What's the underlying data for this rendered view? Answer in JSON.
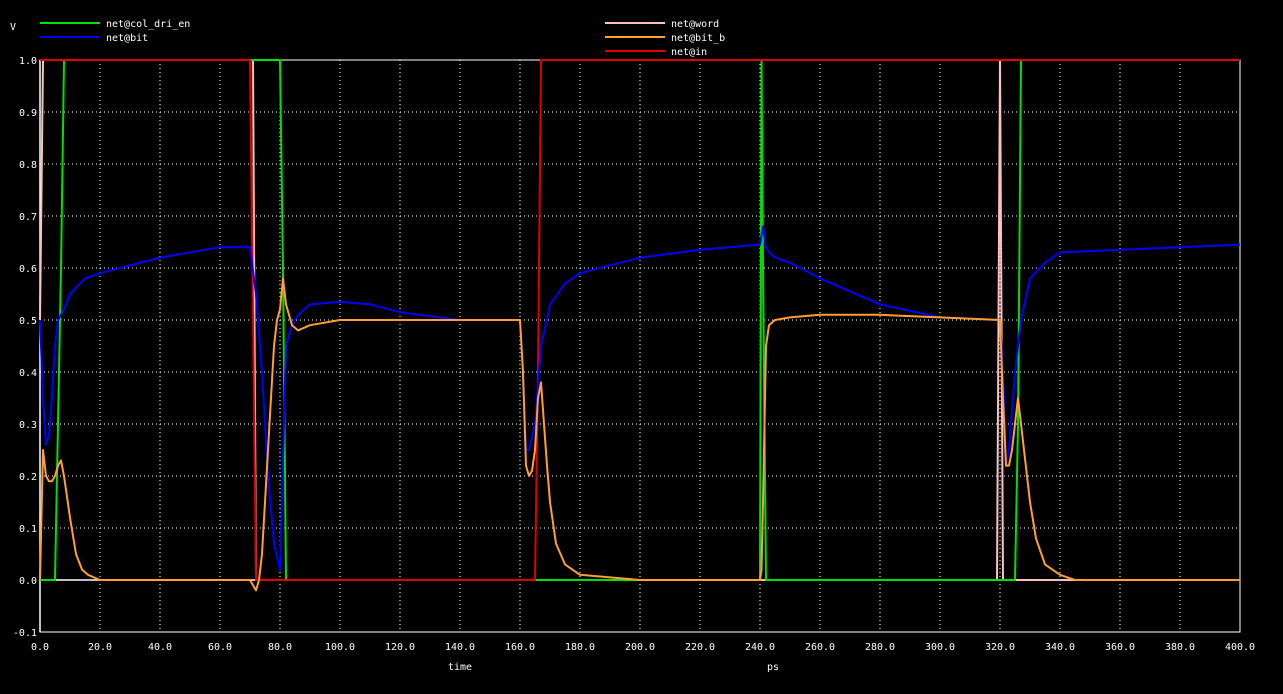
{
  "chart_data": {
    "type": "line",
    "y_unit_label": "V",
    "xlabel": "time",
    "x_unit_label": "ps",
    "xlim": [
      0,
      400
    ],
    "ylim": [
      -0.1,
      1.0
    ],
    "grid": true,
    "x_ticks": [
      "0.0",
      "20.0",
      "40.0",
      "60.0",
      "80.0",
      "100.0",
      "120.0",
      "140.0",
      "160.0",
      "180.0",
      "200.0",
      "220.0",
      "240.0",
      "260.0",
      "280.0",
      "300.0",
      "320.0",
      "340.0",
      "360.0",
      "380.0",
      "400.0"
    ],
    "x_tick_values": [
      0,
      20,
      40,
      60,
      80,
      100,
      120,
      140,
      160,
      180,
      200,
      220,
      240,
      260,
      280,
      300,
      320,
      340,
      360,
      380,
      400
    ],
    "y_ticks": [
      "1.0",
      "0.9",
      "0.8",
      "0.7",
      "0.6",
      "0.5",
      "0.4",
      "0.3",
      "0.2",
      "0.1",
      "0.0",
      "-0.1"
    ],
    "y_tick_values": [
      1.0,
      0.9,
      0.8,
      0.7,
      0.6,
      0.5,
      0.4,
      0.3,
      0.2,
      0.1,
      0.0,
      -0.1
    ],
    "legend_left": [
      "net@col_dri_en",
      "net@bit"
    ],
    "legend_right": [
      "net@word",
      "net@bit_b",
      "net@in"
    ],
    "series": [
      {
        "name": "net@word",
        "color": "#ffc0c0",
        "x": [
          0,
          1,
          2,
          3,
          70,
          71,
          72,
          80,
          81,
          82,
          240,
          241,
          242,
          318,
          319,
          320,
          321,
          400
        ],
        "y": [
          0.5,
          1.0,
          1.0,
          1.0,
          1.0,
          1.0,
          0.0,
          0.0,
          0.0,
          0.0,
          0.0,
          0.0,
          0.0,
          0.0,
          0.0,
          1.0,
          0.0,
          0.0
        ]
      },
      {
        "name": "net@col_dri_en",
        "color": "#00e000",
        "x": [
          0,
          5,
          7,
          8,
          79,
          80,
          81,
          82,
          83,
          84,
          85,
          239,
          240,
          240.5,
          241,
          242,
          243,
          244,
          325,
          326,
          327,
          328,
          329,
          330,
          335,
          400
        ],
        "y": [
          0.0,
          0.0,
          0.6,
          1.0,
          1.0,
          1.0,
          0.6,
          0.0,
          0.0,
          0.0,
          0.0,
          0.0,
          0.0,
          1.0,
          0.6,
          0.0,
          0.0,
          0.0,
          0.0,
          0.3,
          1.0,
          1.0,
          1.0,
          1.0,
          1.0,
          1.0
        ]
      },
      {
        "name": "net@in",
        "color": "#e00000",
        "x": [
          0,
          70,
          71,
          72,
          73,
          160,
          161,
          163,
          165,
          166,
          167,
          168,
          169,
          170,
          400
        ],
        "y": [
          1.0,
          1.0,
          0.5,
          0.0,
          0.0,
          0.0,
          0.0,
          0.0,
          0.0,
          0.4,
          1.0,
          1.0,
          1.0,
          1.0,
          1.0
        ]
      },
      {
        "name": "net@bit",
        "color": "#0000ff",
        "x": [
          0,
          1,
          2,
          3,
          4,
          5,
          6,
          8,
          10,
          15,
          20,
          40,
          60,
          70,
          72,
          74,
          76,
          78,
          80,
          82,
          84,
          86,
          90,
          100,
          110,
          120,
          140,
          160,
          161,
          162,
          163,
          165,
          167,
          170,
          175,
          180,
          200,
          220,
          240,
          241,
          242,
          243,
          245,
          250,
          260,
          280,
          300,
          320,
          321,
          322,
          323,
          325,
          327,
          330,
          335,
          340,
          360,
          380,
          400
        ],
        "y": [
          0.5,
          0.35,
          0.26,
          0.28,
          0.35,
          0.45,
          0.5,
          0.52,
          0.55,
          0.58,
          0.59,
          0.62,
          0.64,
          0.64,
          0.55,
          0.4,
          0.2,
          0.07,
          0.02,
          0.45,
          0.49,
          0.51,
          0.53,
          0.535,
          0.53,
          0.515,
          0.5,
          0.5,
          0.4,
          0.25,
          0.25,
          0.3,
          0.45,
          0.53,
          0.57,
          0.59,
          0.62,
          0.635,
          0.645,
          0.68,
          0.64,
          0.63,
          0.62,
          0.61,
          0.58,
          0.53,
          0.505,
          0.5,
          0.4,
          0.22,
          0.25,
          0.4,
          0.5,
          0.58,
          0.61,
          0.63,
          0.635,
          0.64,
          0.645
        ]
      },
      {
        "name": "net@bit_b",
        "color": "#ffa030",
        "x": [
          0,
          1,
          2,
          3,
          4,
          5,
          6,
          7,
          8,
          10,
          12,
          14,
          16,
          20,
          30,
          60,
          70,
          71,
          72,
          73,
          74,
          75,
          76,
          77,
          78,
          79,
          80,
          81,
          82,
          84,
          86,
          90,
          100,
          120,
          140,
          160,
          161,
          162,
          163,
          164,
          165,
          166,
          167,
          168,
          169,
          170,
          172,
          175,
          180,
          200,
          240,
          240.5,
          241,
          242,
          243,
          245,
          250,
          260,
          270,
          280,
          300,
          320,
          321,
          322,
          323,
          324,
          325,
          326,
          328,
          330,
          332,
          335,
          340,
          345,
          400
        ],
        "y": [
          0.0,
          0.25,
          0.2,
          0.19,
          0.19,
          0.2,
          0.22,
          0.23,
          0.2,
          0.12,
          0.05,
          0.02,
          0.01,
          0.0,
          0.0,
          0.0,
          0.0,
          -0.01,
          -0.02,
          0.0,
          0.05,
          0.15,
          0.25,
          0.35,
          0.45,
          0.5,
          0.52,
          0.58,
          0.53,
          0.49,
          0.48,
          0.49,
          0.5,
          0.5,
          0.5,
          0.5,
          0.4,
          0.22,
          0.2,
          0.21,
          0.25,
          0.35,
          0.38,
          0.3,
          0.22,
          0.15,
          0.07,
          0.03,
          0.01,
          0.0,
          0.0,
          0.02,
          0.15,
          0.45,
          0.49,
          0.5,
          0.505,
          0.51,
          0.51,
          0.51,
          0.505,
          0.5,
          0.35,
          0.22,
          0.22,
          0.25,
          0.3,
          0.35,
          0.25,
          0.15,
          0.08,
          0.03,
          0.01,
          0.0,
          0.0
        ]
      }
    ]
  }
}
